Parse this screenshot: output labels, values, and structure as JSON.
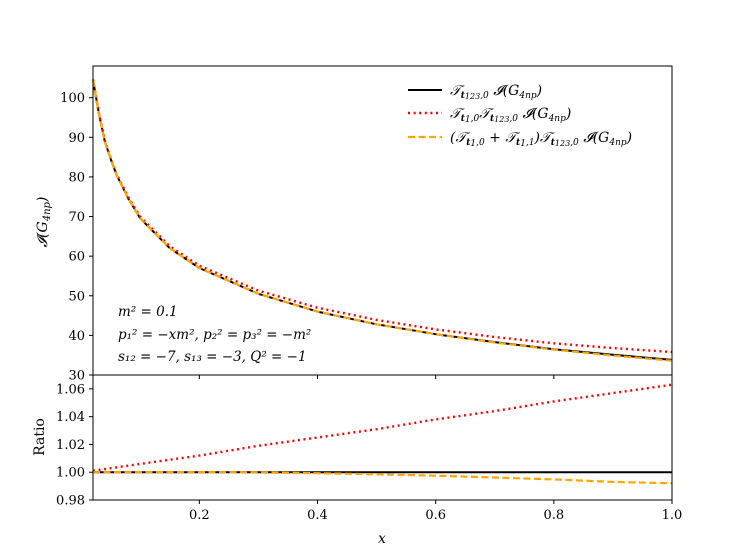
{
  "chart_data": [
    {
      "type": "line",
      "ylabel": "𝓘(G4np)",
      "xlim": [
        0.02,
        1.0
      ],
      "ylim": [
        30,
        108
      ],
      "yticks": [
        30,
        40,
        50,
        60,
        70,
        80,
        90,
        100
      ],
      "grid": false,
      "legend_position": "top-right",
      "annotation": [
        "m² = 0.1",
        "p₁² = −xm²,  p₂² = p₃² = −m²",
        "s₁₂ = −7,  s₁₃ = −3,  Q² = −1"
      ],
      "x": [
        0.02,
        0.03,
        0.04,
        0.05,
        0.06,
        0.08,
        0.1,
        0.15,
        0.2,
        0.3,
        0.4,
        0.5,
        0.6,
        0.7,
        0.8,
        0.9,
        1.0
      ],
      "series": [
        {
          "name": "𝒯t123,0 𝓘(G4np)",
          "color": "#000000",
          "style": "solid",
          "values": [
            104.5,
            96,
            89,
            84.5,
            80.5,
            74.5,
            69.5,
            62,
            57,
            50.5,
            46,
            42.8,
            40.3,
            38.3,
            36.5,
            35.1,
            33.8
          ]
        },
        {
          "name": "𝒯t1,0 𝒯t123,0 𝓘(G4np)",
          "color": "#ff0000",
          "style": "dotted",
          "values": [
            104.6,
            96.1,
            89.2,
            84.7,
            80.7,
            74.8,
            69.9,
            62.5,
            57.6,
            51.3,
            47,
            43.9,
            41.5,
            39.6,
            38,
            36.8,
            35.8
          ]
        },
        {
          "name": "(𝒯t1,0 + 𝒯t1,1) 𝒯t123,0 𝓘(G4np)",
          "color": "#ffa500",
          "style": "dashed",
          "values": [
            104.5,
            96,
            89,
            84.5,
            80.5,
            74.5,
            69.5,
            62,
            57,
            50.5,
            46,
            42.8,
            40.3,
            38.2,
            36.4,
            34.9,
            33.6
          ]
        }
      ]
    },
    {
      "type": "line",
      "xlabel": "x",
      "ylabel": "Ratio",
      "xlim": [
        0.02,
        1.0
      ],
      "ylim": [
        0.98,
        1.07
      ],
      "xticks": [
        0.2,
        0.4,
        0.6,
        0.8,
        1.0
      ],
      "yticks": [
        0.98,
        1.0,
        1.02,
        1.04,
        1.06
      ],
      "grid": false,
      "x": [
        0.02,
        0.1,
        0.2,
        0.3,
        0.4,
        0.5,
        0.6,
        0.7,
        0.8,
        0.9,
        1.0
      ],
      "series": [
        {
          "color": "#000000",
          "style": "solid",
          "values": [
            1.0,
            1.0,
            1.0,
            1.0,
            1.0,
            1.0,
            1.0,
            1.0,
            1.0,
            1.0,
            1.0
          ]
        },
        {
          "color": "#ff0000",
          "style": "dotted",
          "values": [
            1.001,
            1.006,
            1.012,
            1.019,
            1.025,
            1.031,
            1.038,
            1.044,
            1.051,
            1.057,
            1.063
          ]
        },
        {
          "color": "#ffa500",
          "style": "dashed",
          "values": [
            1.0,
            1.0,
            1.0,
            0.9998,
            0.9993,
            0.9985,
            0.9975,
            0.9962,
            0.9948,
            0.993,
            0.992
          ]
        }
      ]
    }
  ]
}
